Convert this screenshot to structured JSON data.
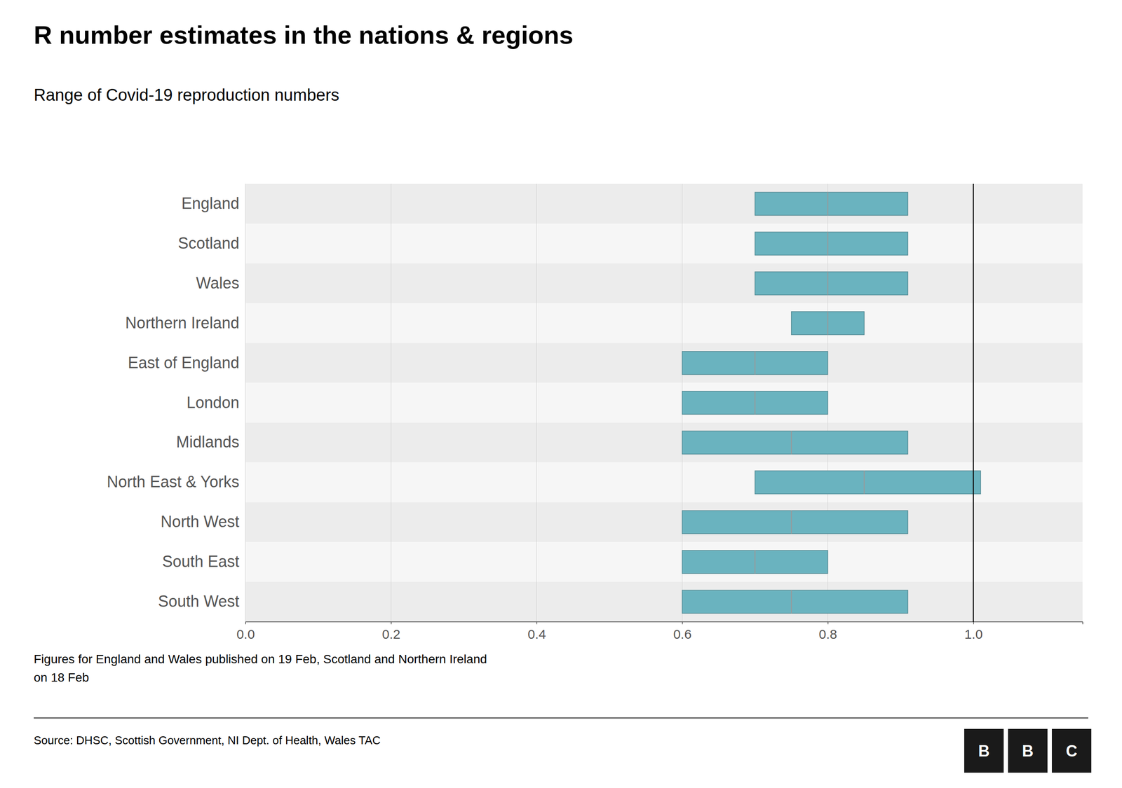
{
  "chart_data": {
    "type": "range",
    "orientation": "horizontal",
    "title": "R number estimates in the nations & regions",
    "subtitle": "Range of Covid-19 reproduction numbers",
    "note": "Figures for England and Wales published on 19 Feb, Scotland and Northern Ireland\non 18 Feb",
    "source": "Source: DHSC, Scottish Government, NI Dept. of Health, Wales TAC",
    "logo": [
      "B",
      "B",
      "C"
    ],
    "categories": [
      "England",
      "Scotland",
      "Wales",
      "Northern Ireland",
      "East of England",
      "London",
      "Midlands",
      "North East & Yorks",
      "North West",
      "South East",
      "South West"
    ],
    "low": [
      0.7,
      0.7,
      0.7,
      0.75,
      0.6,
      0.6,
      0.6,
      0.7,
      0.6,
      0.6,
      0.6
    ],
    "high": [
      0.91,
      0.91,
      0.91,
      0.85,
      0.8,
      0.8,
      0.91,
      1.01,
      0.91,
      0.8,
      0.91
    ],
    "mid": [
      0.8,
      0.8,
      0.8,
      0.8,
      0.7,
      0.7,
      0.75,
      0.85,
      0.75,
      0.7,
      0.75
    ],
    "reference_line": 1.0,
    "color": "#6ab3bf",
    "xlim": [
      0.0,
      1.15
    ],
    "xticks": [
      {
        "value": 0.0,
        "label": "0.0"
      },
      0.2,
      0.4,
      0.6,
      0.8,
      {
        "value": 1.0,
        "label": "1.0"
      }
    ],
    "grid": true
  }
}
